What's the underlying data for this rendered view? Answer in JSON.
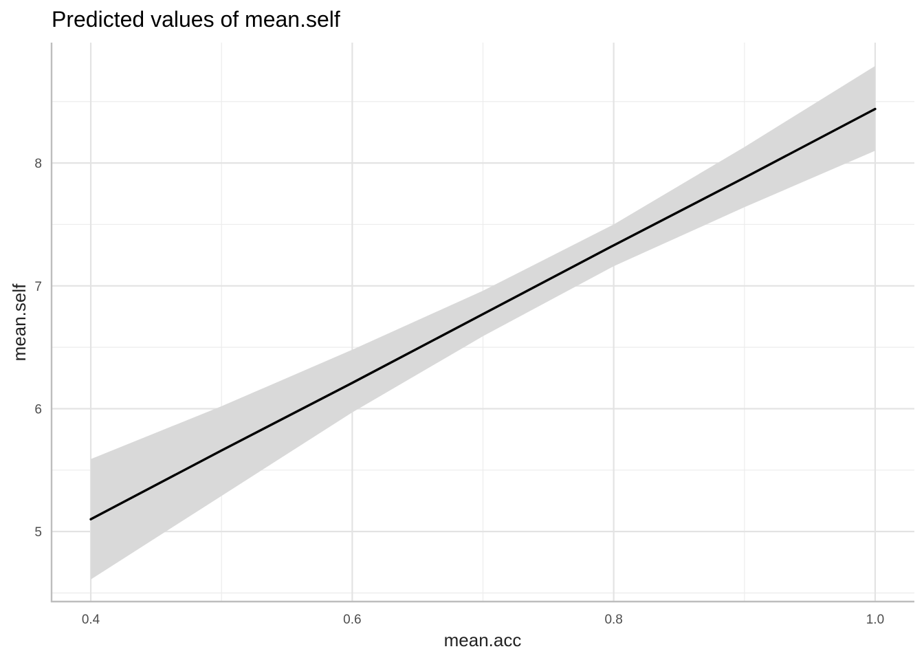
{
  "chart_data": {
    "type": "line",
    "title": "Predicted values of mean.self",
    "xlabel": "mean.acc",
    "ylabel": "mean.self",
    "xlim": [
      0.37,
      1.03
    ],
    "ylim": [
      4.43,
      8.98
    ],
    "x_ticks": [
      0.4,
      0.6,
      0.8,
      1.0
    ],
    "x_tick_labels": [
      "0.4",
      "0.6",
      "0.8",
      "1.0"
    ],
    "x_minor_ticks": [
      0.5,
      0.7,
      0.9
    ],
    "y_ticks": [
      5,
      6,
      7,
      8
    ],
    "y_tick_labels": [
      "5",
      "6",
      "7",
      "8"
    ],
    "y_minor_ticks": [
      4.5,
      5.5,
      6.5,
      7.5,
      8.5
    ],
    "grid": true,
    "legend": "none",
    "series": [
      {
        "x": [
          0.4,
          0.5,
          0.6,
          0.7,
          0.8,
          0.9,
          1.0
        ],
        "values": [
          5.1,
          5.66,
          6.21,
          6.77,
          7.33,
          7.88,
          8.44
        ],
        "ci_lower": [
          4.61,
          5.29,
          5.97,
          6.59,
          7.16,
          7.64,
          8.1
        ],
        "ci_upper": [
          5.59,
          6.02,
          6.48,
          6.96,
          7.5,
          8.13,
          8.79
        ],
        "line_color": "#000000",
        "ribbon_color": "#d9d9d9"
      }
    ]
  }
}
